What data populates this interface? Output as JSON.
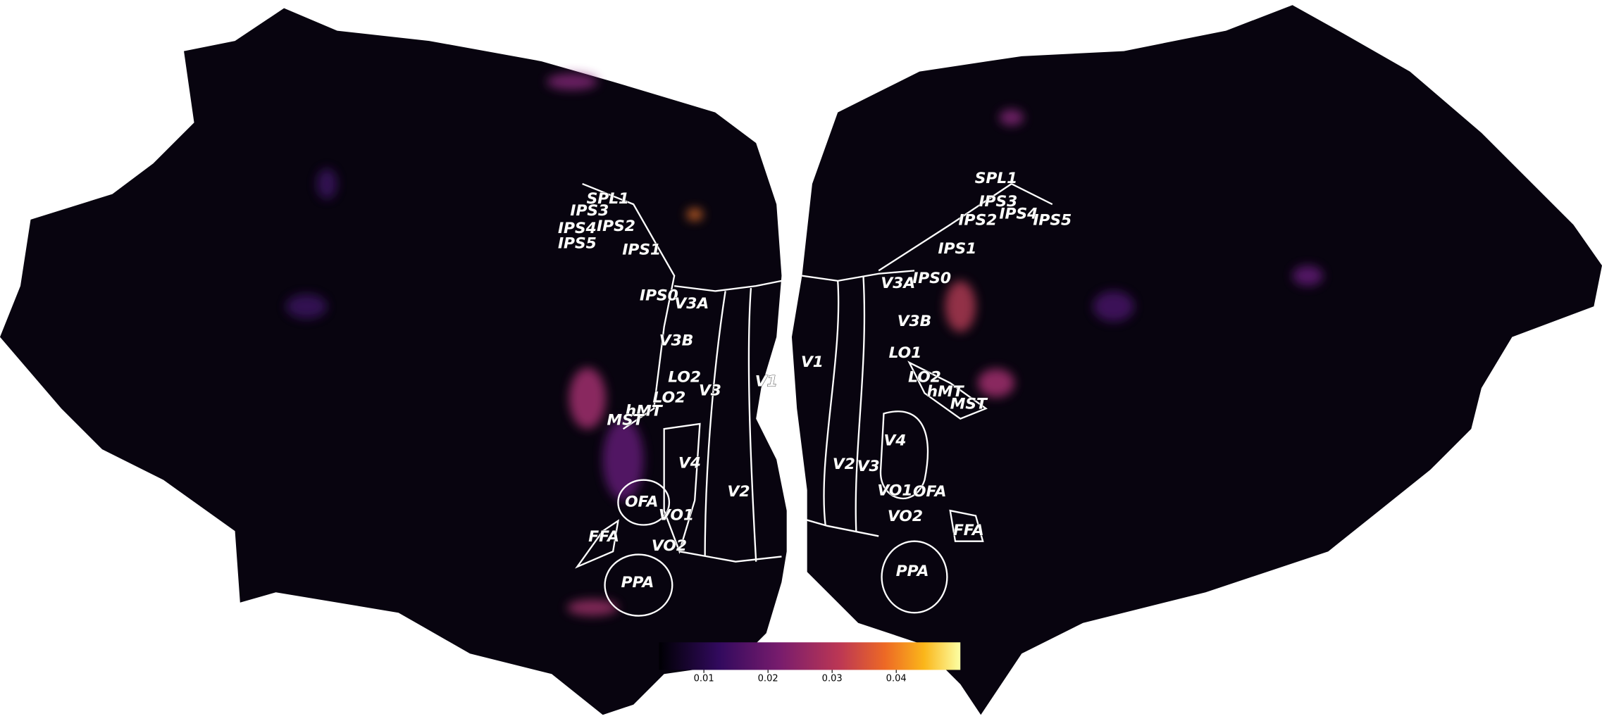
{
  "left_hemisphere": {
    "rois": [
      "SPL1",
      "IPS3",
      "IPS4",
      "IPS2",
      "IPS5",
      "IPS1",
      "IPS0",
      "V3A",
      "V3B",
      "LO2",
      "LO2",
      "V3",
      "V1",
      "hMT",
      "MST",
      "V4",
      "OFA",
      "VO1",
      "V2",
      "FFA",
      "VO2",
      "PPA"
    ]
  },
  "right_hemisphere": {
    "rois": [
      "SPL1",
      "IPS3",
      "IPS4",
      "IPS5",
      "IPS2",
      "IPS1",
      "IPS0",
      "V3A",
      "V3B",
      "LO1",
      "LO2",
      "hMT",
      "MST",
      "V4",
      "V2",
      "V3",
      "VO1",
      "OFA",
      "VO2",
      "FFA",
      "PPA",
      "V1"
    ]
  },
  "colorbar": {
    "lim": [
      0.003,
      0.05
    ],
    "ticks": [
      0.01,
      0.02,
      0.03,
      0.04
    ]
  }
}
